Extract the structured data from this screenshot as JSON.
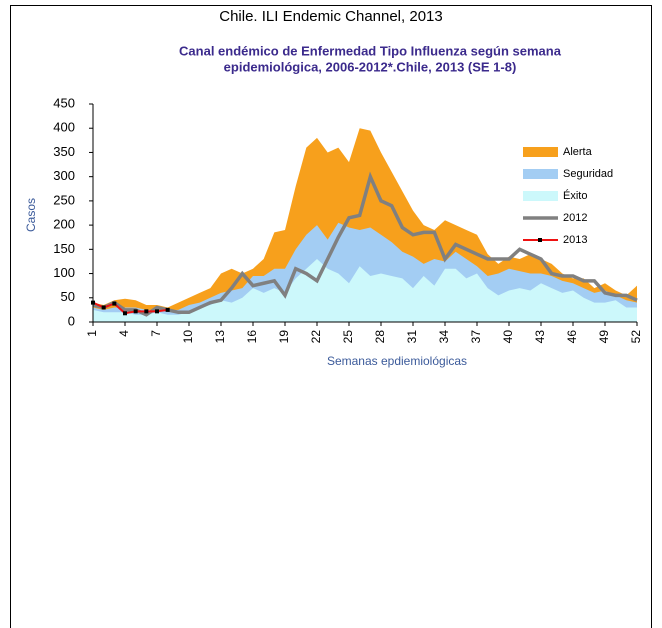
{
  "chart_data": {
    "type": "area",
    "title": "Chile. ILI Endemic Channel, 2013",
    "subtitle": [
      "Canal  endémico de Enfermedad Tipo Influenza según semana",
      "epidemiológica, 2006-2012*.Chile, 2013  (SE 1-8)"
    ],
    "y_label": "Casos",
    "x_label": "Semanas epdiemiológicas",
    "x": [
      1,
      2,
      3,
      4,
      5,
      6,
      7,
      8,
      9,
      10,
      11,
      12,
      13,
      14,
      15,
      16,
      17,
      18,
      19,
      20,
      21,
      22,
      23,
      24,
      25,
      26,
      27,
      28,
      29,
      30,
      31,
      32,
      33,
      34,
      35,
      36,
      37,
      38,
      39,
      40,
      41,
      42,
      43,
      44,
      45,
      46,
      47,
      48,
      49,
      50,
      51,
      52
    ],
    "xlim": [
      1,
      52
    ],
    "xticks": [
      1,
      4,
      7,
      10,
      13,
      16,
      19,
      22,
      25,
      28,
      31,
      34,
      37,
      40,
      43,
      46,
      49,
      52
    ],
    "ylim": [
      0,
      450
    ],
    "yticks": [
      0,
      50,
      100,
      150,
      200,
      250,
      300,
      350,
      400,
      450
    ],
    "series": [
      {
        "name": "Alerta",
        "color": "#f7a01c",
        "kind": "area",
        "values": [
          40,
          35,
          45,
          48,
          45,
          35,
          35,
          30,
          40,
          50,
          60,
          70,
          100,
          110,
          100,
          110,
          130,
          185,
          190,
          280,
          360,
          380,
          350,
          360,
          330,
          400,
          395,
          350,
          310,
          270,
          230,
          200,
          190,
          210,
          200,
          190,
          180,
          140,
          120,
          135,
          130,
          140,
          130,
          120,
          100,
          90,
          90,
          70,
          80,
          65,
          55,
          75
        ]
      },
      {
        "name": "Seguridad",
        "color": "#a3cdf3",
        "kind": "area",
        "values": [
          30,
          25,
          30,
          30,
          30,
          25,
          25,
          25,
          25,
          35,
          40,
          50,
          60,
          65,
          70,
          95,
          95,
          110,
          110,
          150,
          180,
          200,
          170,
          205,
          195,
          190,
          195,
          180,
          165,
          145,
          135,
          120,
          130,
          125,
          145,
          130,
          115,
          95,
          100,
          110,
          105,
          100,
          100,
          95,
          85,
          80,
          70,
          60,
          65,
          55,
          45,
          40
        ]
      },
      {
        "name": "Éxito",
        "color": "#ccf8fb",
        "kind": "area",
        "values": [
          25,
          20,
          20,
          20,
          15,
          15,
          20,
          15,
          15,
          20,
          30,
          35,
          45,
          40,
          50,
          70,
          60,
          70,
          60,
          90,
          110,
          130,
          110,
          100,
          80,
          115,
          95,
          100,
          95,
          90,
          70,
          95,
          75,
          110,
          110,
          90,
          100,
          70,
          55,
          65,
          70,
          65,
          80,
          70,
          60,
          65,
          50,
          40,
          40,
          45,
          30,
          30
        ]
      },
      {
        "name": "2012",
        "color": "#808080",
        "kind": "line",
        "values": [
          35,
          30,
          40,
          25,
          25,
          15,
          30,
          25,
          20,
          20,
          30,
          40,
          45,
          70,
          100,
          75,
          80,
          85,
          55,
          110,
          100,
          85,
          130,
          175,
          215,
          220,
          300,
          250,
          240,
          195,
          180,
          185,
          185,
          130,
          160,
          150,
          140,
          130,
          130,
          130,
          150,
          140,
          130,
          100,
          95,
          95,
          85,
          85,
          60,
          55,
          55,
          45
        ]
      },
      {
        "name": "2013",
        "color": "#ee1111",
        "kind": "line",
        "marker": true,
        "values": [
          40,
          30,
          38,
          18,
          22,
          22,
          22,
          25,
          null,
          null,
          null,
          null,
          null,
          null,
          null,
          null,
          null,
          null,
          null,
          null,
          null,
          null,
          null,
          null,
          null,
          null,
          null,
          null,
          null,
          null,
          null,
          null,
          null,
          null,
          null,
          null,
          null,
          null,
          null,
          null,
          null,
          null,
          null,
          null,
          null,
          null,
          null,
          null,
          null,
          null,
          null,
          null
        ]
      }
    ]
  }
}
